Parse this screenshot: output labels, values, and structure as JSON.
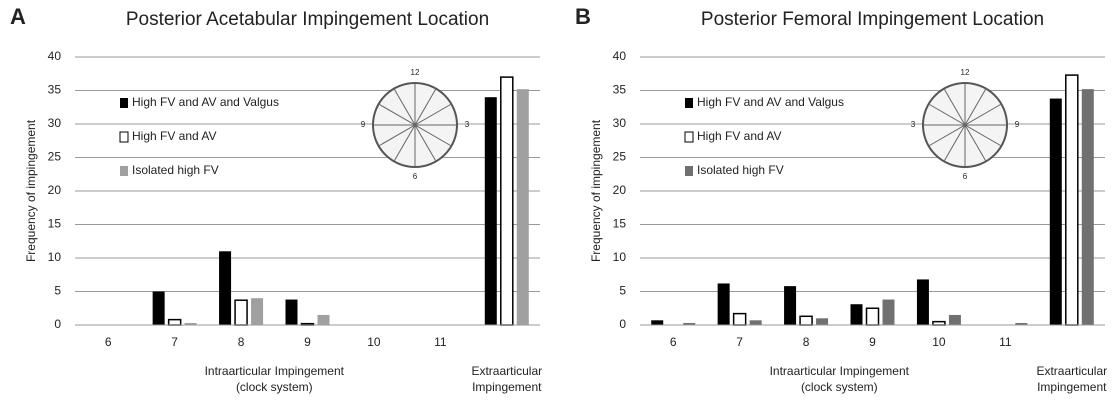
{
  "chart_data": [
    {
      "type": "bar",
      "panel": "A",
      "title": "Posterior Acetabular Impingement Location",
      "y_label": "Frequency of impingement",
      "categories": [
        "6",
        "7",
        "8",
        "9",
        "10",
        "11",
        null
      ],
      "x_groups": [
        [
          "Intraarticular Impingement",
          "(clock system)"
        ],
        [
          "Extraarticular",
          "Impingement"
        ]
      ],
      "series": [
        {
          "name": "High FV and AV and Valgus",
          "color": "#000000",
          "values": [
            0,
            5,
            11,
            3.8,
            0,
            0,
            34
          ]
        },
        {
          "name": "High FV and AV",
          "color": "#ffffff",
          "values": [
            0,
            0.8,
            3.7,
            0.2,
            0,
            0,
            37
          ]
        },
        {
          "name": "Isolated high FV",
          "color": "#a0a0a0",
          "values": [
            0,
            0.3,
            4,
            1.5,
            0,
            0,
            35.2
          ]
        }
      ],
      "inset_labels": [
        "12",
        "3",
        "6",
        "9"
      ],
      "ylim": [
        0,
        40
      ],
      "yticks": [
        0,
        5,
        10,
        15,
        20,
        25,
        30,
        35,
        40
      ],
      "grid": true,
      "legend": "upper left"
    },
    {
      "type": "bar",
      "panel": "B",
      "title": "Posterior Femoral Impingement Location",
      "y_label": "Frequency of impingement",
      "categories": [
        "6",
        "7",
        "8",
        "9",
        "10",
        "11",
        null
      ],
      "x_groups": [
        [
          "Intraarticular Impingement",
          "(clock system)"
        ],
        [
          "Extraarticular",
          "Impingement"
        ]
      ],
      "series": [
        {
          "name": "High FV and AV and Valgus",
          "color": "#000000",
          "values": [
            0.7,
            6.2,
            5.8,
            3.1,
            6.8,
            0,
            33.8
          ]
        },
        {
          "name": "High FV and AV",
          "color": "#ffffff",
          "values": [
            0,
            1.7,
            1.3,
            2.5,
            0.5,
            0,
            37.3
          ]
        },
        {
          "name": "Isolated high FV",
          "color": "#707070",
          "values": [
            0.3,
            0.7,
            1.0,
            3.8,
            1.5,
            0.3,
            35.2
          ]
        }
      ],
      "inset_labels": [
        "12",
        "9",
        "6",
        "3"
      ],
      "ylim": [
        0,
        40
      ],
      "yticks": [
        0,
        5,
        10,
        15,
        20,
        25,
        30,
        35,
        40
      ],
      "grid": true,
      "legend": "upper left"
    }
  ]
}
